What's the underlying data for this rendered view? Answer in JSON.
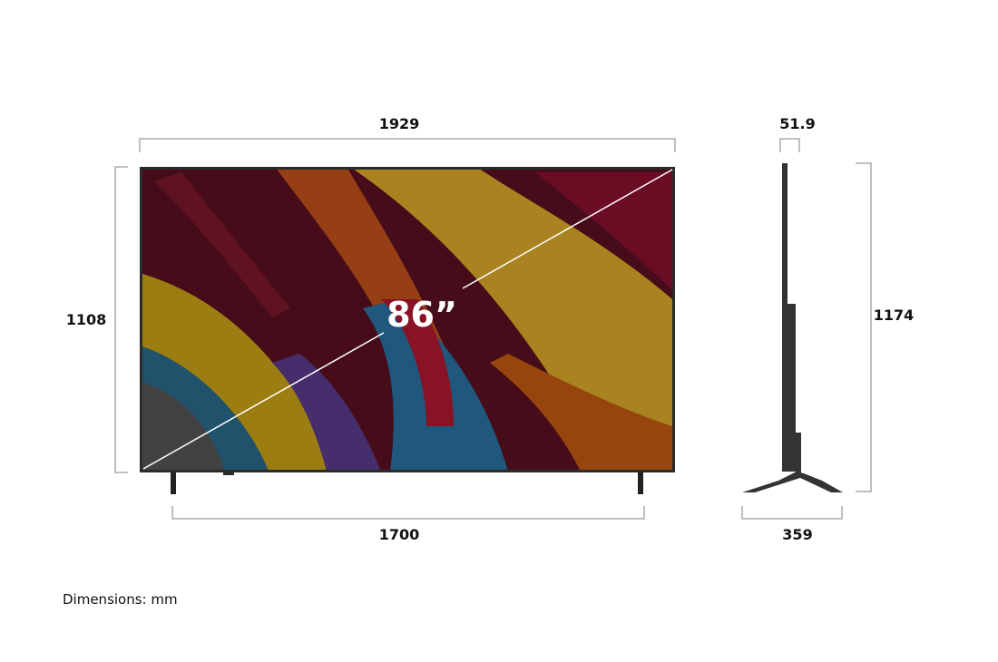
{
  "front_view": {
    "width_label": "1929",
    "height_label": "1108",
    "stand_width_label": "1700",
    "diagonal_label": "86”"
  },
  "side_view": {
    "depth_label": "51.9",
    "height_label": "1174",
    "stand_depth_label": "359"
  },
  "units_note": "Dimensions: mm",
  "colors": {
    "bracket": "#aaaaaa",
    "tv_body": "#2b2b2b",
    "text": "#111111"
  }
}
